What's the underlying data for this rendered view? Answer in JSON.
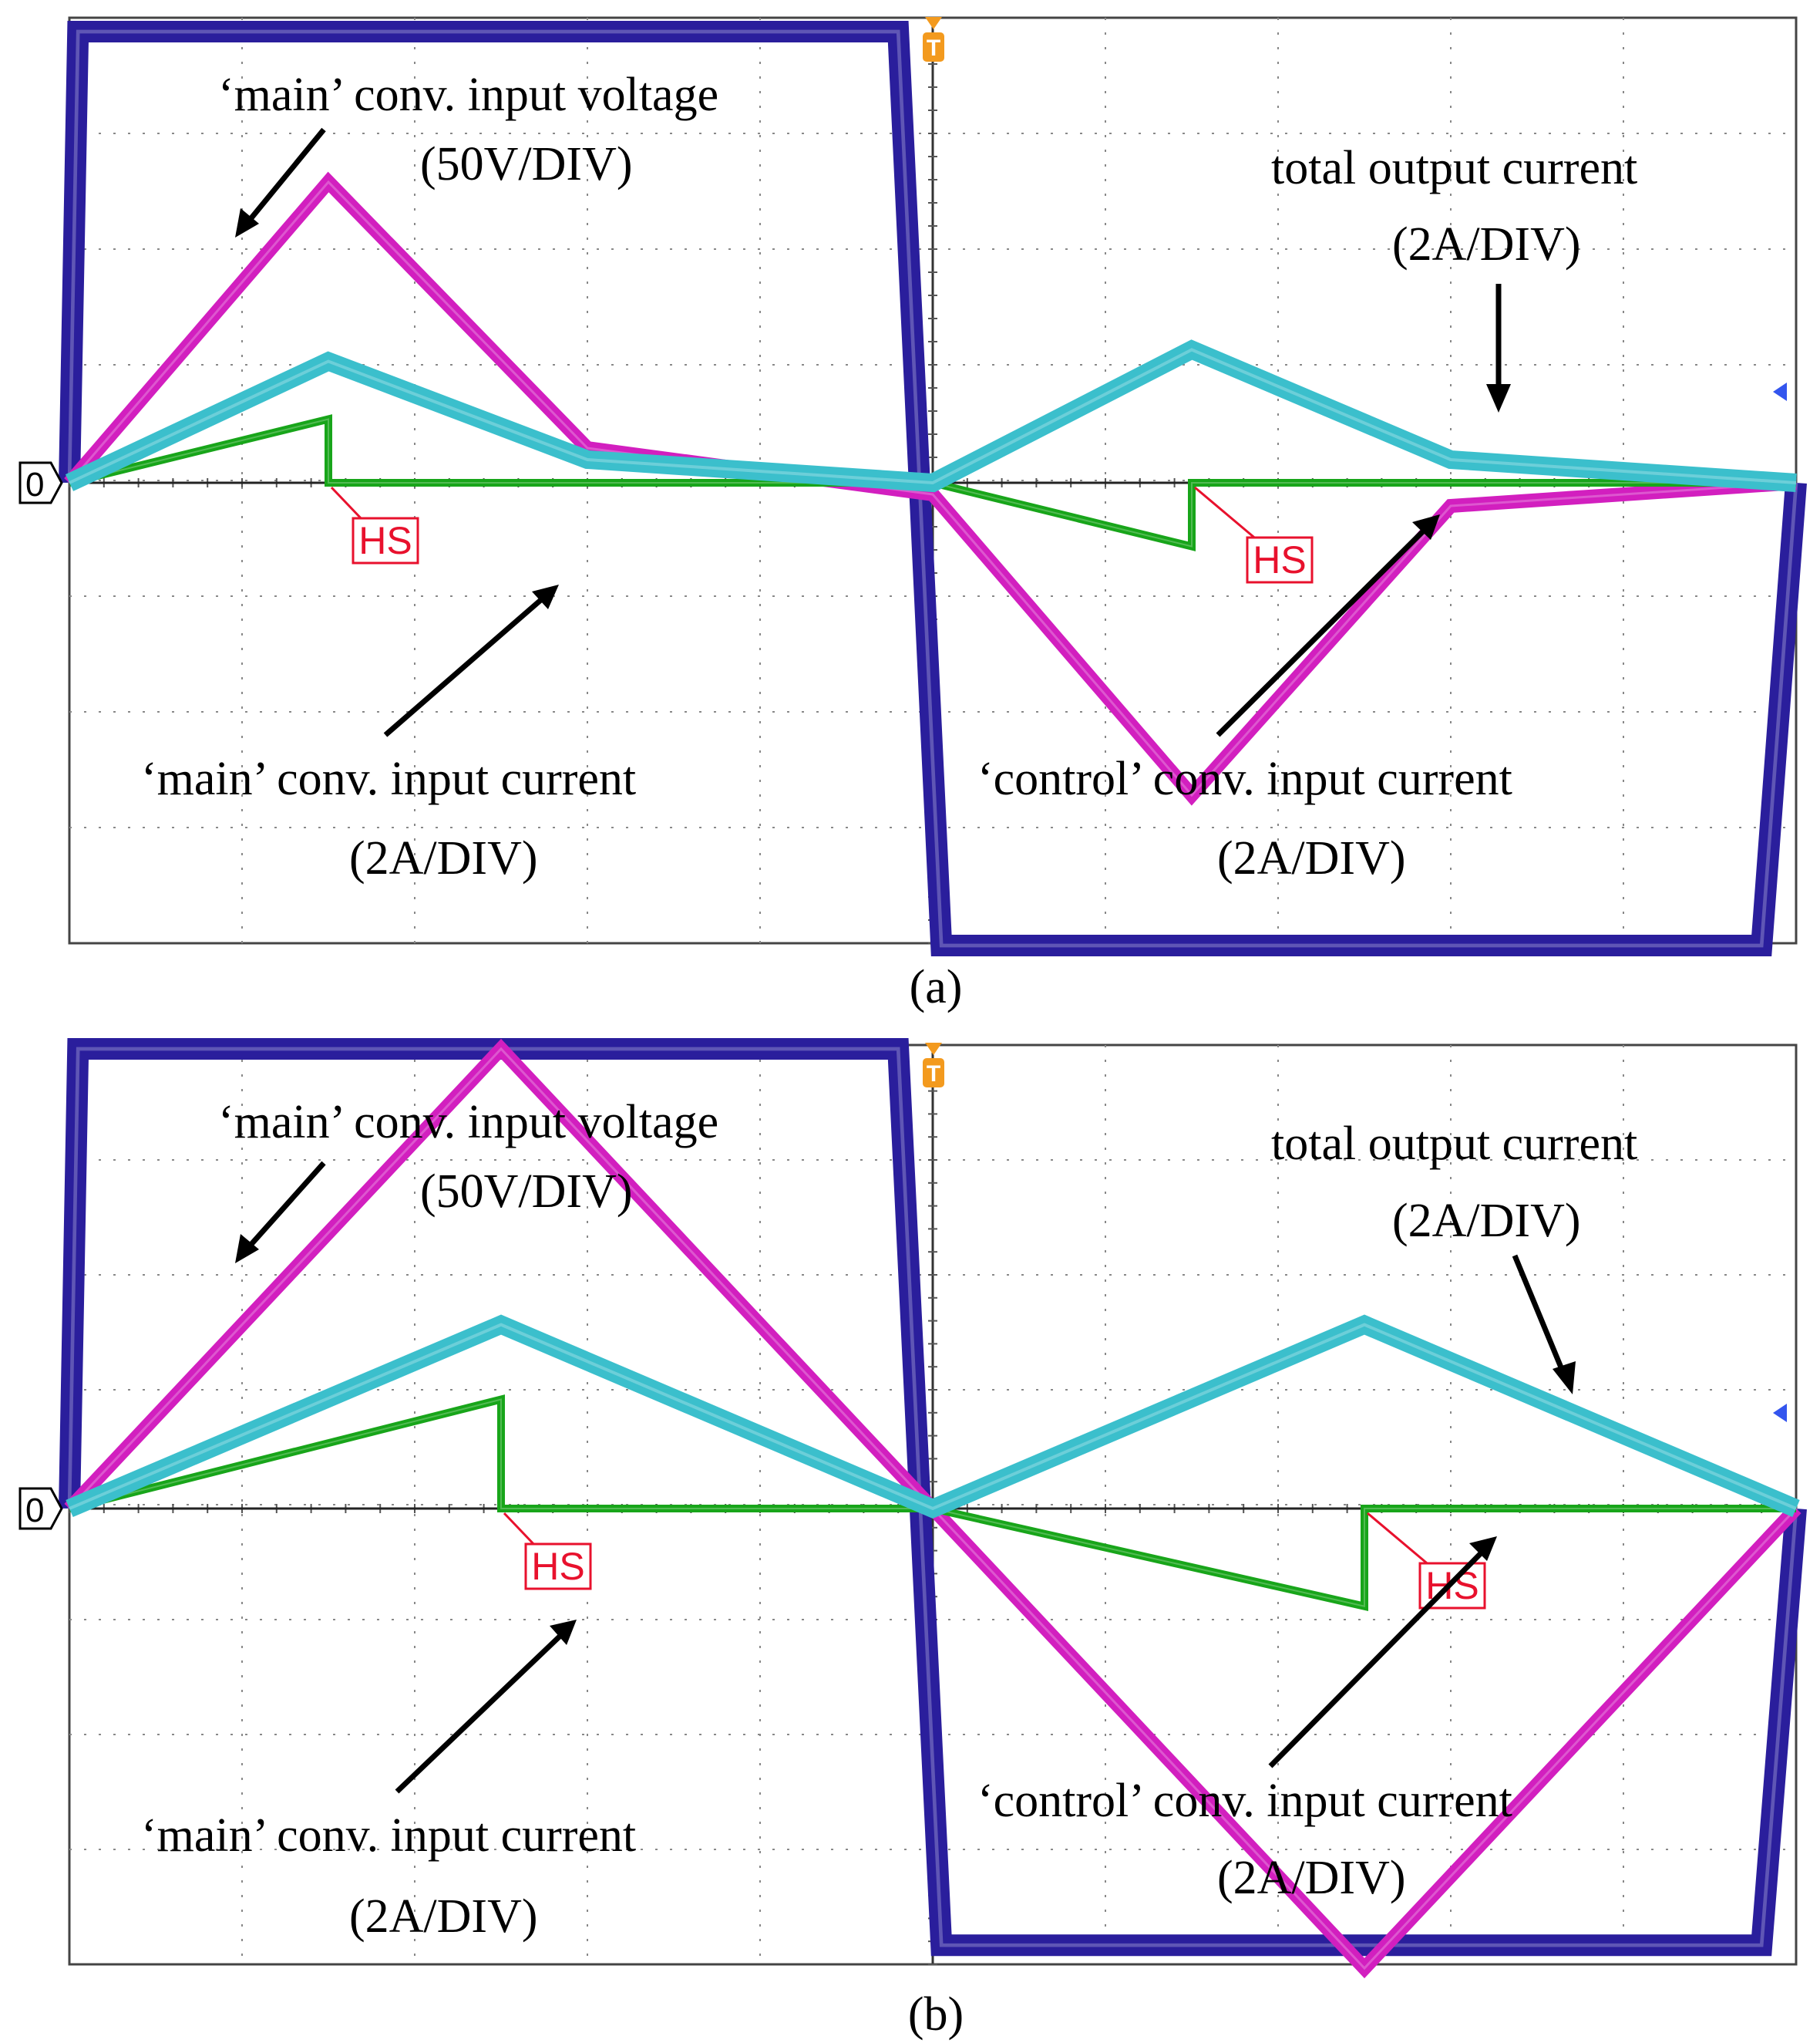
{
  "colors": {
    "voltage": "#2a1e9c",
    "main_current": "#d21fbf",
    "control_current": "#18a51a",
    "total_current": "#3bbfcc",
    "hs": "#e8112d",
    "trigger": "#f39a1e",
    "grid": "#555555"
  },
  "chart_data": [
    {
      "type": "line",
      "panel": "a",
      "caption": "(a)",
      "zero_marker": "0",
      "trigger_marker": "T",
      "grid": true,
      "x_divisions": 10,
      "y_divisions": 8,
      "xlim": [
        0,
        10
      ],
      "ylim": [
        -4,
        4
      ],
      "series": [
        {
          "name": "main_input_voltage",
          "color_key": "voltage",
          "x": [
            0,
            0.05,
            4.8,
            5.05,
            9.8,
            10
          ],
          "y": [
            0,
            3.9,
            3.9,
            -4.0,
            -4.0,
            0
          ]
        },
        {
          "name": "main_input_current",
          "color_key": "main_current",
          "x": [
            0,
            1.5,
            3.0,
            5.0,
            6.5,
            8.0,
            10
          ],
          "y": [
            0,
            2.6,
            0.3,
            -0.1,
            -2.7,
            -0.2,
            0
          ]
        },
        {
          "name": "total_output_current",
          "color_key": "total_current",
          "x": [
            0,
            1.5,
            3.0,
            5.0,
            6.5,
            8.0,
            10
          ],
          "y": [
            0,
            1.05,
            0.2,
            0,
            1.15,
            0.2,
            0
          ]
        },
        {
          "name": "control_input_current",
          "color_key": "control_current",
          "x": [
            0,
            1.5,
            1.5,
            3.0,
            5.0,
            6.5,
            6.5,
            8.0,
            10
          ],
          "y": [
            0,
            0.55,
            0,
            0,
            0,
            -0.55,
            0,
            0,
            0
          ]
        }
      ],
      "annotations": [
        {
          "label": "HS",
          "x": 1.5
        },
        {
          "label": "HS",
          "x": 6.5
        }
      ],
      "labels": {
        "voltage": [
          "‘main’ conv. input voltage",
          "(50V/DIV)"
        ],
        "total": [
          "total output current",
          "(2A/DIV)"
        ],
        "main_current": [
          "‘main’ conv. input current",
          "(2A/DIV)"
        ],
        "control_current": [
          "‘control’ conv. input current",
          "(2A/DIV)"
        ]
      }
    },
    {
      "type": "line",
      "panel": "b",
      "caption": "(b)",
      "zero_marker": "0",
      "trigger_marker": "T",
      "grid": true,
      "x_divisions": 10,
      "y_divisions": 8,
      "xlim": [
        0,
        10
      ],
      "ylim": [
        -4,
        4
      ],
      "series": [
        {
          "name": "main_input_voltage",
          "color_key": "voltage",
          "x": [
            0,
            0.05,
            4.8,
            5.05,
            9.8,
            10
          ],
          "y": [
            0,
            4.0,
            4.0,
            -3.8,
            -3.8,
            0
          ]
        },
        {
          "name": "main_input_current",
          "color_key": "main_current",
          "x": [
            0,
            2.5,
            5.0,
            7.5,
            10
          ],
          "y": [
            0,
            4.0,
            0,
            -4.0,
            0
          ]
        },
        {
          "name": "total_output_current",
          "color_key": "total_current",
          "x": [
            0,
            2.5,
            5.0,
            7.5,
            10
          ],
          "y": [
            0,
            1.6,
            0,
            1.6,
            0
          ]
        },
        {
          "name": "control_input_current",
          "color_key": "control_current",
          "x": [
            0,
            2.5,
            2.5,
            5.0,
            7.5,
            7.5,
            10
          ],
          "y": [
            0,
            0.95,
            0,
            0,
            -0.85,
            0,
            0
          ]
        }
      ],
      "annotations": [
        {
          "label": "HS",
          "x": 2.5
        },
        {
          "label": "HS",
          "x": 7.5
        }
      ],
      "labels": {
        "voltage": [
          "‘main’ conv. input voltage",
          "(50V/DIV)"
        ],
        "total": [
          "total output current",
          "(2A/DIV)"
        ],
        "main_current": [
          "‘main’ conv. input current",
          "(2A/DIV)"
        ],
        "control_current": [
          "‘control’ conv. input current",
          "(2A/DIV)"
        ]
      }
    }
  ]
}
